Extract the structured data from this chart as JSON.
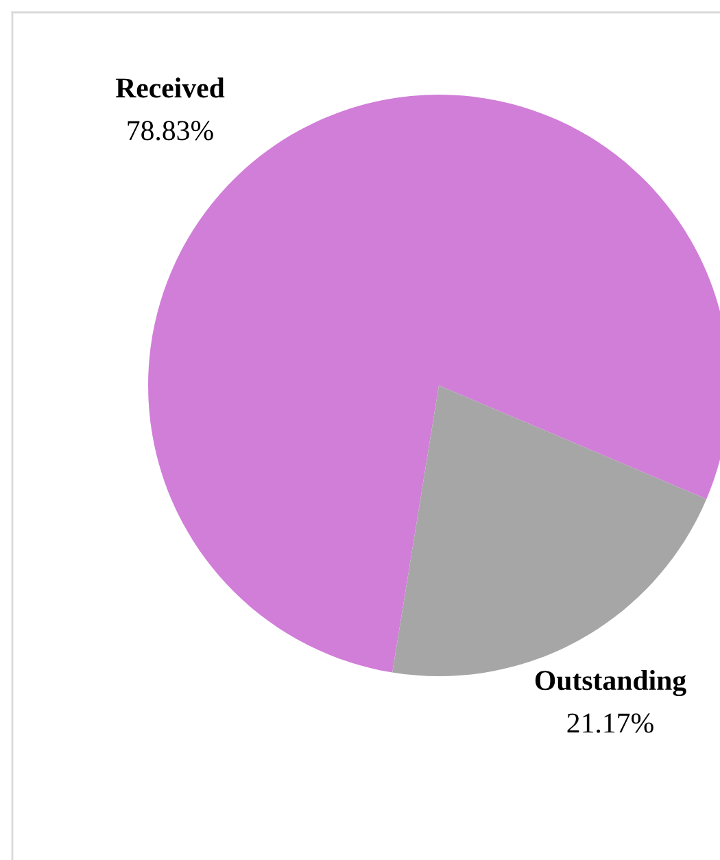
{
  "chart_data": {
    "type": "pie",
    "categories": [
      "Received",
      "Outstanding"
    ],
    "values": [
      78.83,
      21.17
    ],
    "colors": [
      "#d17ed8",
      "#a6a6a6"
    ],
    "value_labels": [
      "78.83%",
      "21.17%"
    ],
    "legend": false
  }
}
